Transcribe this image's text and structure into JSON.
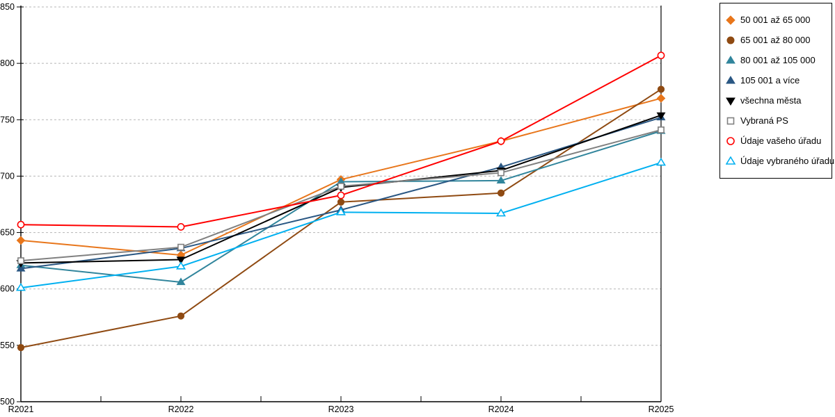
{
  "chart_data": {
    "type": "line",
    "title": "",
    "xlabel": "",
    "ylabel": "",
    "categories": [
      "R2021",
      "R2022",
      "R2023",
      "R2024",
      "R2025"
    ],
    "ylim": [
      500,
      850
    ],
    "ytick_step": 50,
    "ytick_labels": [
      "500",
      "550",
      "600",
      "650",
      "700",
      "750",
      "800",
      "850"
    ],
    "grid": "horizontal-dashed",
    "legend_position": "outside-top-right",
    "series": [
      {
        "name": "50 001 až 65 000",
        "marker": "diamond",
        "filled": true,
        "color": "#E8761B",
        "values": [
          643,
          630,
          697,
          731,
          769
        ]
      },
      {
        "name": "65 001 až 80 000",
        "marker": "circle",
        "filled": true,
        "color": "#8F4A12",
        "values": [
          548,
          576,
          677,
          685,
          777
        ]
      },
      {
        "name": "80 001 až 105 000",
        "marker": "triangle-up",
        "filled": true,
        "color": "#31859C",
        "values": [
          621,
          606,
          695,
          696,
          740
        ]
      },
      {
        "name": "105 001 a více",
        "marker": "triangle-up",
        "filled": true,
        "color": "#2A5783",
        "values": [
          618,
          636,
          670,
          708,
          752
        ]
      },
      {
        "name": "všechna města",
        "marker": "triangle-down",
        "filled": true,
        "color": "#000000",
        "values": [
          623,
          626,
          690,
          705,
          754
        ]
      },
      {
        "name": "Vybraná PS",
        "marker": "square",
        "filled": false,
        "color": "#808080",
        "values": [
          625,
          637,
          691,
          703,
          741
        ]
      },
      {
        "name": "Údaje vašeho úřadu",
        "marker": "circle",
        "filled": false,
        "color": "#FF0000",
        "values": [
          657,
          655,
          683,
          731,
          807
        ]
      },
      {
        "name": "Údaje vybraného úřadu",
        "marker": "triangle-up",
        "filled": false,
        "color": "#00B0F0",
        "values": [
          601,
          620,
          668,
          667,
          712
        ]
      }
    ],
    "colors": {
      "axis": "#000000",
      "gridline": "#b5b5b5",
      "background": "#ffffff"
    }
  }
}
